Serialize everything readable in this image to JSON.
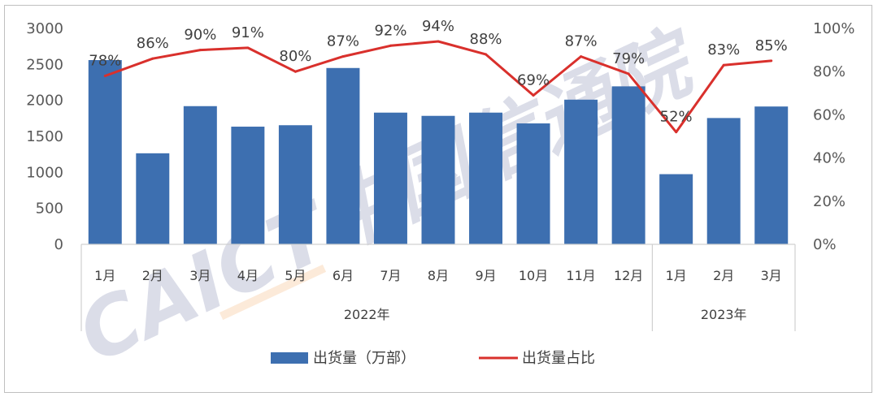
{
  "chart_data": {
    "type": "bar",
    "categories": [
      "1月",
      "2月",
      "3月",
      "4月",
      "5月",
      "6月",
      "7月",
      "8月",
      "9月",
      "10月",
      "11月",
      "12月",
      "1月",
      "2月",
      "3月"
    ],
    "groups": [
      {
        "label": "2022年",
        "count": 12
      },
      {
        "label": "2023年",
        "count": 3
      }
    ],
    "series": [
      {
        "name": "出货量（万部）",
        "type": "bar",
        "axis": "left",
        "values": [
          2560,
          1265,
          1920,
          1635,
          1655,
          2450,
          1830,
          1785,
          1830,
          1680,
          2010,
          2195,
          975,
          1755,
          1915
        ]
      },
      {
        "name": "出货量占比",
        "type": "line",
        "axis": "right",
        "values": [
          78,
          86,
          90,
          91,
          80,
          87,
          92,
          94,
          88,
          69,
          87,
          79,
          52,
          83,
          85
        ],
        "labels": [
          "78%",
          "86%",
          "90%",
          "91%",
          "80%",
          "87%",
          "92%",
          "94%",
          "88%",
          "69%",
          "87%",
          "79%",
          "52%",
          "83%",
          "85%"
        ]
      }
    ],
    "ylim_left": [
      0,
      3000
    ],
    "yticks_left": [
      "0",
      "500",
      "1000",
      "1500",
      "2000",
      "2500",
      "3000"
    ],
    "ylim_right": [
      0,
      100
    ],
    "yticks_right": [
      "0%",
      "20%",
      "40%",
      "60%",
      "80%",
      "100%"
    ],
    "legend_position": "bottom",
    "grid": false,
    "colors": {
      "bar": "#3d6fb0",
      "line": "#d9302c"
    }
  },
  "watermark": "CAICT中国信通院"
}
